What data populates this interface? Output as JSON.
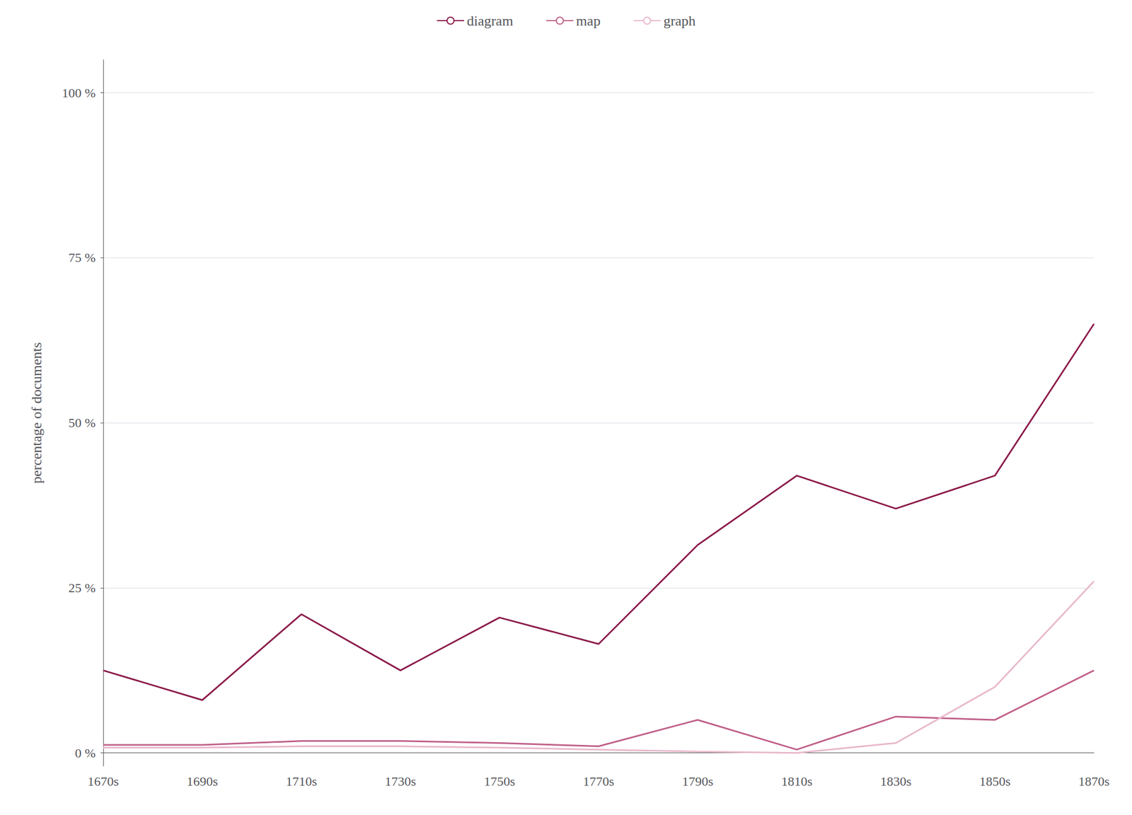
{
  "chart_data": {
    "type": "line",
    "ylabel": "percentage of documents",
    "categories": [
      "1670s",
      "1690s",
      "1710s",
      "1730s",
      "1750s",
      "1770s",
      "1790s",
      "1810s",
      "1830s",
      "1850s",
      "1870s"
    ],
    "series": [
      {
        "name": "diagram",
        "color": "#8B1A4A",
        "values": [
          12.5,
          8.0,
          21.0,
          12.5,
          20.5,
          16.5,
          31.5,
          42.0,
          37.0,
          42.0,
          65.0
        ]
      },
      {
        "name": "map",
        "color": "#C0608A",
        "values": [
          1.2,
          1.2,
          1.8,
          1.8,
          1.5,
          1.0,
          5.0,
          0.5,
          5.5,
          5.0,
          12.5
        ]
      },
      {
        "name": "graph",
        "color": "#E8B8CC",
        "values": [
          0.8,
          0.8,
          1.0,
          1.0,
          0.8,
          0.5,
          0.2,
          0.0,
          1.5,
          10.0,
          26.0
        ]
      }
    ],
    "ylim": [
      -2,
      105
    ],
    "yticks": [
      {
        "value": 0,
        "label": "0 %"
      },
      {
        "value": 25,
        "label": "25 %"
      },
      {
        "value": 50,
        "label": "50 %"
      },
      {
        "value": 75,
        "label": "75 %"
      },
      {
        "value": 100,
        "label": "100 %"
      }
    ],
    "grid": true,
    "legend": "top"
  }
}
